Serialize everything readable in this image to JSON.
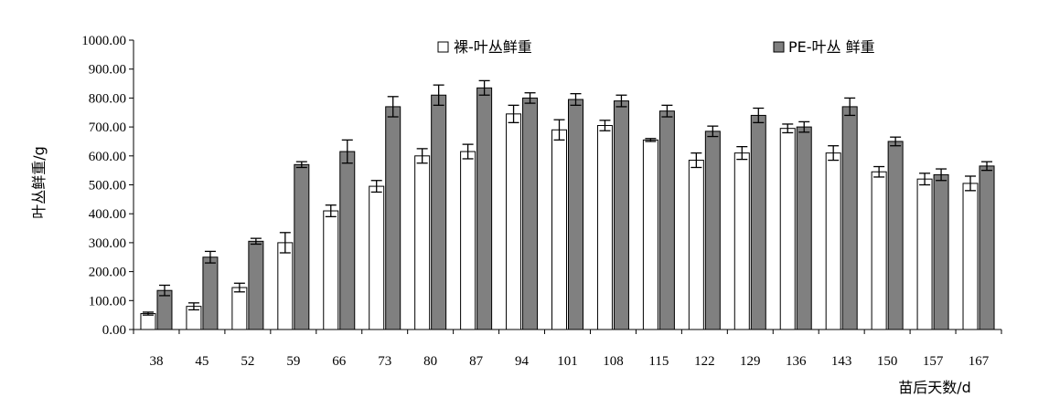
{
  "chart_data": {
    "type": "bar",
    "title": "",
    "xlabel": "苗后天数/d",
    "ylabel": "叶丛鲜重/g",
    "ylim": [
      0,
      1000
    ],
    "yticks": [
      "0.00",
      "100.00",
      "200.00",
      "300.00",
      "400.00",
      "500.00",
      "600.00",
      "700.00",
      "800.00",
      "900.00",
      "1000.00"
    ],
    "categories": [
      "38",
      "45",
      "52",
      "59",
      "66",
      "73",
      "80",
      "87",
      "94",
      "101",
      "108",
      "115",
      "122",
      "129",
      "136",
      "143",
      "150",
      "157",
      "167"
    ],
    "series": [
      {
        "name": "裸-叶丛鲜重",
        "color": "#ffffff",
        "values": [
          55,
          80,
          145,
          300,
          410,
          495,
          600,
          615,
          745,
          690,
          705,
          655,
          585,
          610,
          695,
          610,
          545,
          520,
          505
        ],
        "errors": [
          5,
          12,
          15,
          35,
          20,
          20,
          25,
          25,
          30,
          35,
          18,
          5,
          25,
          22,
          15,
          25,
          18,
          20,
          25
        ]
      },
      {
        "name": "PE-叶丛 鲜重",
        "color": "#808080",
        "values": [
          135,
          250,
          305,
          570,
          615,
          770,
          810,
          835,
          800,
          795,
          790,
          755,
          685,
          740,
          700,
          770,
          650,
          535,
          565
        ],
        "errors": [
          18,
          20,
          10,
          10,
          40,
          35,
          35,
          25,
          18,
          20,
          20,
          20,
          18,
          25,
          18,
          30,
          15,
          20,
          15
        ]
      }
    ],
    "grid": false,
    "legend": "top"
  }
}
